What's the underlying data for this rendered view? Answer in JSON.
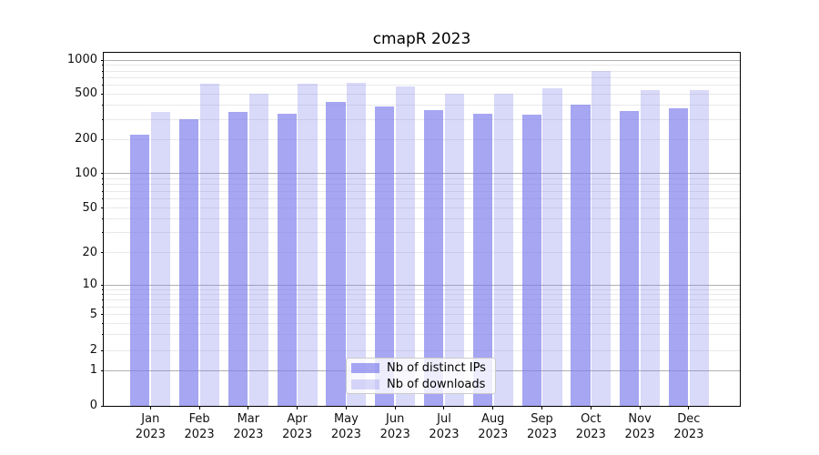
{
  "chart_data": {
    "type": "bar",
    "title": "cmapR 2023",
    "categories": [
      "Jan",
      "Feb",
      "Mar",
      "Apr",
      "May",
      "Jun",
      "Jul",
      "Aug",
      "Sep",
      "Oct",
      "Nov",
      "Dec"
    ],
    "x_year": "2023",
    "series": [
      {
        "name": "Nb of distinct IPs",
        "base_color": "#7878eb",
        "alpha": 0.66,
        "values": [
          220,
          300,
          350,
          335,
          425,
          390,
          360,
          335,
          330,
          400,
          355,
          375
        ]
      },
      {
        "name": "Nb of downloads",
        "base_color": "#7878eb",
        "alpha": 0.28,
        "values": [
          350,
          615,
          500,
          615,
          630,
          585,
          505,
          500,
          565,
          800,
          545,
          545
        ]
      }
    ],
    "yscale": "symlog",
    "y_ticks": [
      0,
      1,
      2,
      5,
      10,
      20,
      50,
      100,
      200,
      500,
      1000
    ],
    "y_minor_ticks": [
      3,
      4,
      6,
      7,
      8,
      9,
      30,
      40,
      60,
      70,
      80,
      90,
      300,
      400,
      600,
      700,
      800,
      900
    ],
    "ylim": [
      0,
      1150
    ],
    "xlabel": "",
    "ylabel": "",
    "grid": "both",
    "legend_position": "lower center"
  },
  "colors": {
    "bar_base": "#7878eb",
    "grid_major": "#b0b0b0",
    "grid_minor": "#e9e9e9",
    "spine": "#000000",
    "legend_border": "#cccccc"
  }
}
